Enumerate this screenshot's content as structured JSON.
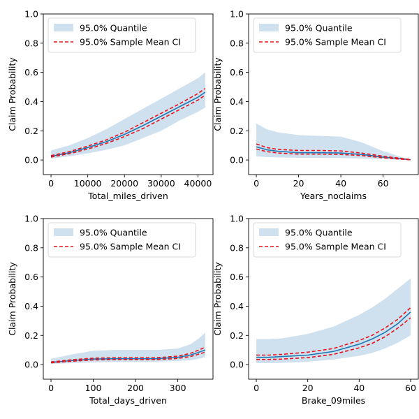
{
  "chart_data": [
    {
      "type": "line",
      "xlabel": "Total_miles_driven",
      "ylabel": "Claim Probability",
      "xlim": [
        -2100,
        44100
      ],
      "ylim": [
        -0.1,
        1.0
      ],
      "xticks": [
        0,
        10000,
        20000,
        30000,
        40000
      ],
      "yticks": [
        0.0,
        0.2,
        0.4,
        0.6,
        0.8,
        1.0
      ],
      "x": [
        0,
        5000,
        10000,
        15000,
        20000,
        25000,
        30000,
        35000,
        40000,
        42000
      ],
      "band_label": "95.0% Quantile",
      "ci_label": "95.0% Sample Mean CI",
      "legend_loc": "upper left",
      "band_lower": [
        0.01,
        0.025,
        0.045,
        0.07,
        0.1,
        0.15,
        0.2,
        0.27,
        0.33,
        0.36
      ],
      "band_upper": [
        0.065,
        0.1,
        0.15,
        0.21,
        0.28,
        0.35,
        0.42,
        0.49,
        0.56,
        0.6
      ],
      "mean": [
        0.025,
        0.05,
        0.085,
        0.125,
        0.175,
        0.235,
        0.3,
        0.365,
        0.43,
        0.465
      ],
      "ci_lower": [
        0.02,
        0.043,
        0.075,
        0.113,
        0.16,
        0.215,
        0.28,
        0.345,
        0.41,
        0.445
      ],
      "ci_upper": [
        0.03,
        0.057,
        0.095,
        0.137,
        0.19,
        0.255,
        0.32,
        0.385,
        0.455,
        0.49
      ]
    },
    {
      "type": "line",
      "xlabel": "Years_noclaims",
      "ylabel": "Claim Probability",
      "xlim": [
        -3.65,
        76.65
      ],
      "ylim": [
        -0.1,
        1.0
      ],
      "xticks": [
        0,
        20,
        40,
        60
      ],
      "yticks": [
        0.0,
        0.2,
        0.4,
        0.6,
        0.8,
        1.0
      ],
      "x": [
        0,
        5,
        10,
        20,
        30,
        40,
        50,
        60,
        70,
        73
      ],
      "band_label": "95.0% Quantile",
      "ci_label": "95.0% Sample Mean CI",
      "legend_loc": "upper left",
      "band_lower": [
        0.025,
        0.02,
        0.018,
        0.015,
        0.015,
        0.013,
        0.01,
        0.005,
        0.002,
        0.0
      ],
      "band_upper": [
        0.25,
        0.21,
        0.19,
        0.17,
        0.165,
        0.16,
        0.12,
        0.06,
        0.015,
        0.005
      ],
      "mean": [
        0.09,
        0.07,
        0.06,
        0.05,
        0.05,
        0.048,
        0.038,
        0.02,
        0.006,
        0.002
      ],
      "ci_lower": [
        0.075,
        0.057,
        0.048,
        0.04,
        0.04,
        0.038,
        0.03,
        0.015,
        0.004,
        0.001
      ],
      "ci_upper": [
        0.11,
        0.085,
        0.073,
        0.065,
        0.065,
        0.062,
        0.047,
        0.026,
        0.008,
        0.003
      ]
    },
    {
      "type": "line",
      "xlabel": "Total_days_driven",
      "ylabel": "Claim Probability",
      "xlim": [
        -18.25,
        383.25
      ],
      "ylim": [
        -0.1,
        1.0
      ],
      "xticks": [
        0,
        100,
        200,
        300
      ],
      "yticks": [
        0.0,
        0.2,
        0.4,
        0.6,
        0.8,
        1.0
      ],
      "x": [
        0,
        50,
        100,
        150,
        200,
        250,
        300,
        330,
        350,
        365
      ],
      "band_label": "95.0% Quantile",
      "ci_label": "95.0% Sample Mean CI",
      "legend_loc": "upper left",
      "band_lower": [
        0.005,
        0.01,
        0.015,
        0.02,
        0.02,
        0.02,
        0.025,
        0.03,
        0.04,
        0.05
      ],
      "band_upper": [
        0.04,
        0.07,
        0.095,
        0.1,
        0.1,
        0.1,
        0.11,
        0.14,
        0.18,
        0.22
      ],
      "mean": [
        0.015,
        0.028,
        0.038,
        0.04,
        0.04,
        0.04,
        0.05,
        0.065,
        0.085,
        0.1
      ],
      "ci_lower": [
        0.012,
        0.023,
        0.032,
        0.034,
        0.034,
        0.034,
        0.042,
        0.055,
        0.072,
        0.085
      ],
      "ci_upper": [
        0.018,
        0.033,
        0.044,
        0.047,
        0.047,
        0.047,
        0.058,
        0.077,
        0.1,
        0.12
      ]
    },
    {
      "type": "line",
      "xlabel": "Brake_09miles",
      "ylabel": "Claim Probability",
      "xlim": [
        -3.0,
        63.0
      ],
      "ylim": [
        -0.1,
        1.0
      ],
      "xticks": [
        0,
        20,
        40,
        60
      ],
      "yticks": [
        0.0,
        0.2,
        0.4,
        0.6,
        0.8,
        1.0
      ],
      "x": [
        0,
        5,
        10,
        20,
        30,
        40,
        45,
        50,
        55,
        60
      ],
      "band_label": "95.0% Quantile",
      "ci_label": "95.0% Sample Mean CI",
      "legend_loc": "upper left",
      "band_lower": [
        0.01,
        0.01,
        0.012,
        0.02,
        0.035,
        0.06,
        0.08,
        0.11,
        0.15,
        0.2
      ],
      "band_upper": [
        0.175,
        0.175,
        0.18,
        0.21,
        0.26,
        0.34,
        0.39,
        0.45,
        0.52,
        0.59
      ],
      "mean": [
        0.05,
        0.05,
        0.055,
        0.065,
        0.09,
        0.14,
        0.175,
        0.22,
        0.28,
        0.36
      ],
      "ci_lower": [
        0.035,
        0.035,
        0.038,
        0.048,
        0.07,
        0.115,
        0.145,
        0.19,
        0.25,
        0.32
      ],
      "ci_upper": [
        0.065,
        0.065,
        0.07,
        0.085,
        0.11,
        0.165,
        0.2,
        0.25,
        0.31,
        0.39
      ]
    }
  ],
  "colors": {
    "band": "#cfe0ee",
    "mean": "#1f77b4",
    "ci": "#e8121b",
    "axes": "#000000",
    "legend_border": "#d9d9d9"
  }
}
